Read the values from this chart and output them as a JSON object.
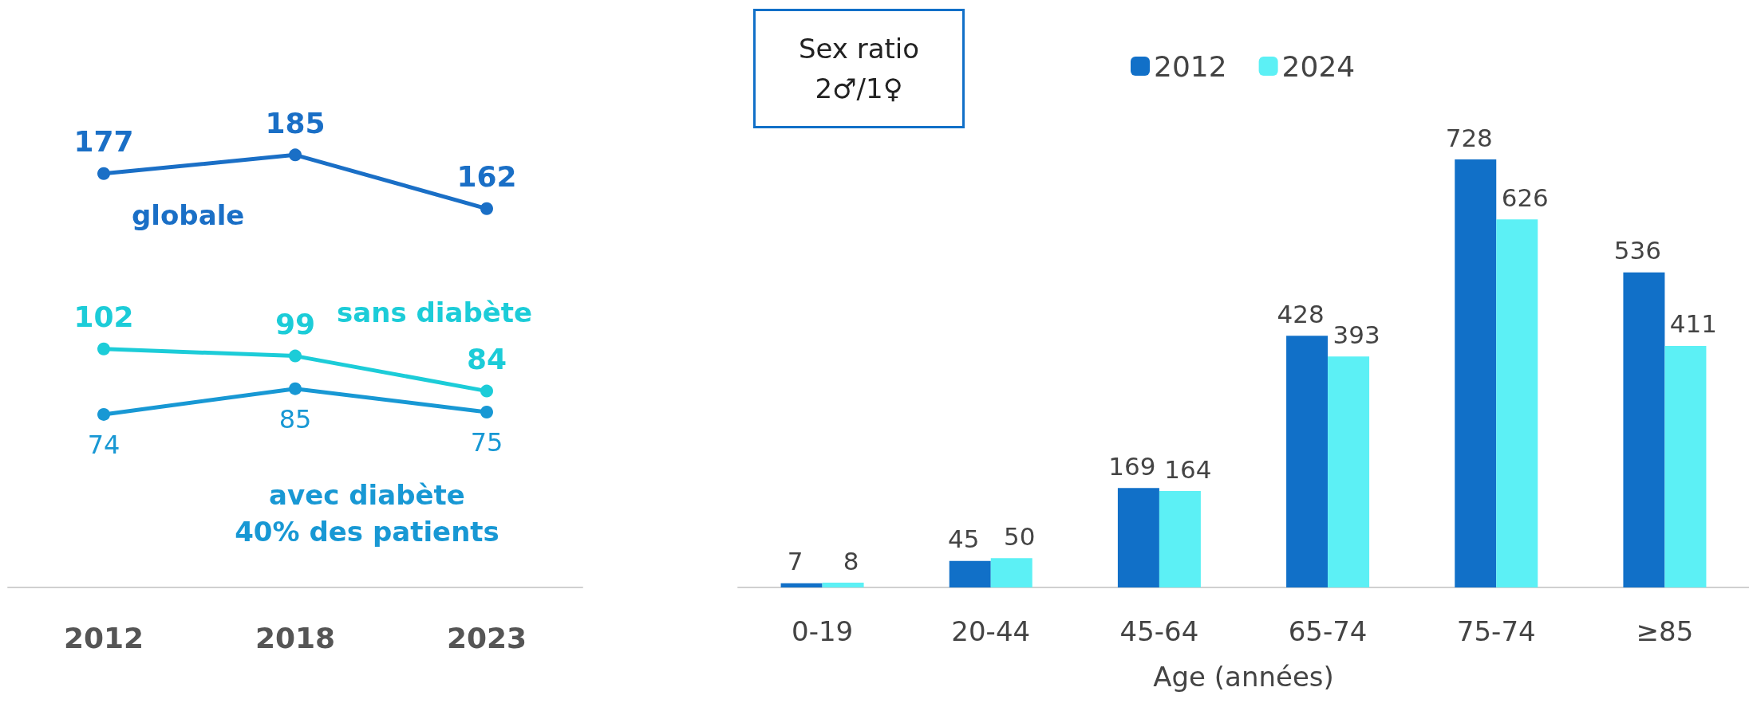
{
  "chart_data": [
    {
      "type": "line",
      "categories": [
        "2012",
        "2018",
        "2023"
      ],
      "series": [
        {
          "name": "globale",
          "color": "#1a6fc6",
          "values": [
            177,
            185,
            162
          ]
        },
        {
          "name": "sans diabète",
          "color": "#1cccd8",
          "values": [
            102,
            99,
            84
          ]
        },
        {
          "name": "avec diabète",
          "color": "#1898d4",
          "values": [
            74,
            85,
            75
          ]
        }
      ],
      "annotations": [
        "40% des patients"
      ],
      "tick_labels": "x",
      "data_labels": true,
      "marker": "circle",
      "grid": false,
      "legend": false
    },
    {
      "type": "bar",
      "categories": [
        "0-19",
        "20-44",
        "45-64",
        "65-74",
        "75-74",
        "≥85"
      ],
      "xlabel": "Age (années)",
      "series": [
        {
          "name": "2012",
          "color": "#1170c8",
          "values": [
            7,
            45,
            169,
            428,
            728,
            536
          ]
        },
        {
          "name": "2024",
          "color": "#5cf0f5",
          "values": [
            8,
            50,
            164,
            393,
            626,
            411
          ]
        }
      ],
      "annotations": [
        "Sex ratio\n2♂/1♀"
      ],
      "tick_labels": "x",
      "data_labels": true,
      "grid": false,
      "legend": "top"
    }
  ]
}
